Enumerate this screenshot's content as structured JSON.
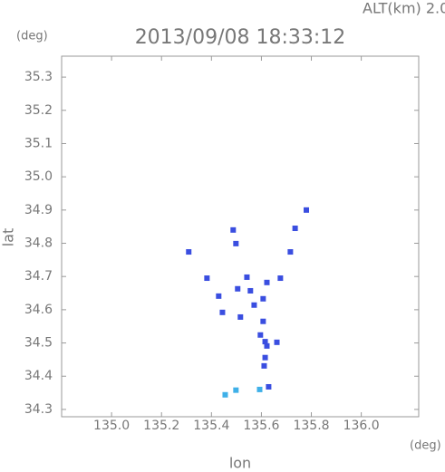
{
  "chart_data": {
    "type": "scatter",
    "title": "2013/09/08 18:33:12",
    "subtitle": "ALT(km) 2.0",
    "x_label": "lon",
    "y_label": "lat",
    "x_unit": "(deg)",
    "y_unit": "(deg)",
    "xlim": [
      134.8,
      136.23
    ],
    "ylim": [
      34.278,
      35.363
    ],
    "xticks": [
      {
        "value": 135.0,
        "label": "135.0"
      },
      135.2,
      135.4,
      135.6,
      135.8,
      {
        "value": 136.0,
        "label": "136.0"
      }
    ],
    "yticks": [
      34.3,
      34.4,
      34.5,
      34.6,
      34.7,
      34.8,
      34.9,
      {
        "value": 35.0,
        "label": "35.0"
      },
      35.1,
      35.2,
      35.3
    ],
    "series": [
      {
        "color": "#3a4ee0",
        "x": [
          135.78,
          135.735,
          135.487,
          135.498,
          135.309,
          135.716,
          135.382,
          135.542,
          135.676,
          135.429,
          135.505,
          135.556,
          135.607,
          135.622,
          135.444,
          135.516,
          135.571,
          135.607,
          135.596,
          135.622,
          135.615,
          135.611,
          135.615,
          135.662,
          135.629
        ],
        "y": [
          34.9,
          34.845,
          34.84,
          34.799,
          34.774,
          34.774,
          34.695,
          34.698,
          34.695,
          34.641,
          34.663,
          34.657,
          34.633,
          34.682,
          34.592,
          34.578,
          34.614,
          34.565,
          34.524,
          34.491,
          34.456,
          34.431,
          34.504,
          34.502,
          34.368
        ]
      },
      {
        "color": "#3fb0e8",
        "x": [
          135.593,
          135.498,
          135.455
        ],
        "y": [
          34.36,
          34.358,
          34.344
        ]
      }
    ]
  }
}
